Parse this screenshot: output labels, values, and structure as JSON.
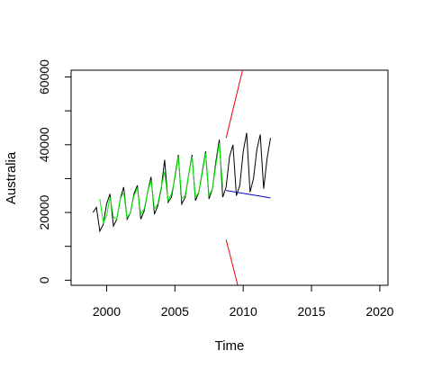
{
  "chart_data": {
    "type": "line",
    "title": "",
    "xlabel": "Time",
    "ylabel": "Australia",
    "xlim": [
      1997.4,
      2020.6
    ],
    "ylim": [
      -1500,
      62000
    ],
    "xticks": [
      2000,
      2005,
      2010,
      2015,
      2020
    ],
    "xtick_labels": [
      "2000",
      "2005",
      "2010",
      "2015",
      "2020"
    ],
    "yticks": [
      0,
      20000,
      40000,
      60000
    ],
    "ytick_labels": [
      "0",
      "20000",
      "40000",
      "60000"
    ],
    "grid": false,
    "legend": "none",
    "series": [
      {
        "color": "#000000",
        "x": [
          1999.0,
          1999.25,
          1999.5,
          1999.75,
          2000.0,
          2000.25,
          2000.5,
          2000.75,
          2001.0,
          2001.25,
          2001.5,
          2001.75,
          2002.0,
          2002.25,
          2002.5,
          2002.75,
          2003.0,
          2003.25,
          2003.5,
          2003.75,
          2004.0,
          2004.25,
          2004.5,
          2004.75,
          2005.0,
          2005.25,
          2005.5,
          2005.75,
          2006.0,
          2006.25,
          2006.5,
          2006.75,
          2007.0,
          2007.25,
          2007.5,
          2007.75,
          2008.0,
          2008.25,
          2008.5,
          2008.75,
          2009.0,
          2009.25,
          2009.5,
          2009.75,
          2010.0,
          2010.25,
          2010.5,
          2010.75,
          2011.0,
          2011.25,
          2011.5,
          2011.75,
          2012.0
        ],
        "y": [
          20000,
          21500,
          14500,
          16500,
          22500,
          25500,
          16000,
          18000,
          24000,
          27500,
          18000,
          20000,
          25500,
          28000,
          18000,
          20500,
          26000,
          30500,
          19500,
          22000,
          27000,
          35500,
          23000,
          24500,
          30500,
          37000,
          22500,
          24500,
          31000,
          37000,
          23500,
          26000,
          32000,
          38000,
          24000,
          27000,
          35000,
          41500,
          24500,
          27500,
          36500,
          40000,
          25000,
          28000,
          38000,
          43500,
          26000,
          30000,
          38500,
          43000,
          27000,
          36000,
          42000
        ]
      },
      {
        "color": "#00ee00",
        "x": [
          1999.5,
          1999.75,
          2000.0,
          2000.25,
          2000.5,
          2000.75,
          2001.0,
          2001.25,
          2001.5,
          2001.75,
          2002.0,
          2002.25,
          2002.5,
          2002.75,
          2003.0,
          2003.25,
          2003.5,
          2003.75,
          2004.0,
          2004.25,
          2004.5,
          2004.75,
          2005.0,
          2005.25,
          2005.5,
          2005.75,
          2006.0,
          2006.25,
          2006.5,
          2006.75,
          2007.0,
          2007.25,
          2007.5,
          2007.75,
          2008.0,
          2008.25,
          2008.5
        ],
        "y": [
          24000,
          17000,
          19000,
          24500,
          18500,
          18000,
          24000,
          26000,
          18500,
          20000,
          25000,
          27000,
          19500,
          21000,
          26000,
          29500,
          21000,
          22500,
          27500,
          32000,
          23500,
          25500,
          30000,
          36500,
          24000,
          25000,
          31000,
          36500,
          24500,
          26000,
          31500,
          37500,
          25000,
          27000,
          34000,
          40500,
          27500
        ]
      },
      {
        "color": "#0000cc",
        "x": [
          2008.75,
          2012.0
        ],
        "y": [
          26500,
          24300
        ]
      },
      {
        "color": "#ee0000",
        "x": [
          2008.75,
          2009.95
        ],
        "y": [
          42000,
          62000
        ]
      },
      {
        "color": "#ee0000",
        "x": [
          2008.75,
          2009.6
        ],
        "y": [
          12000,
          -1500
        ]
      }
    ]
  }
}
